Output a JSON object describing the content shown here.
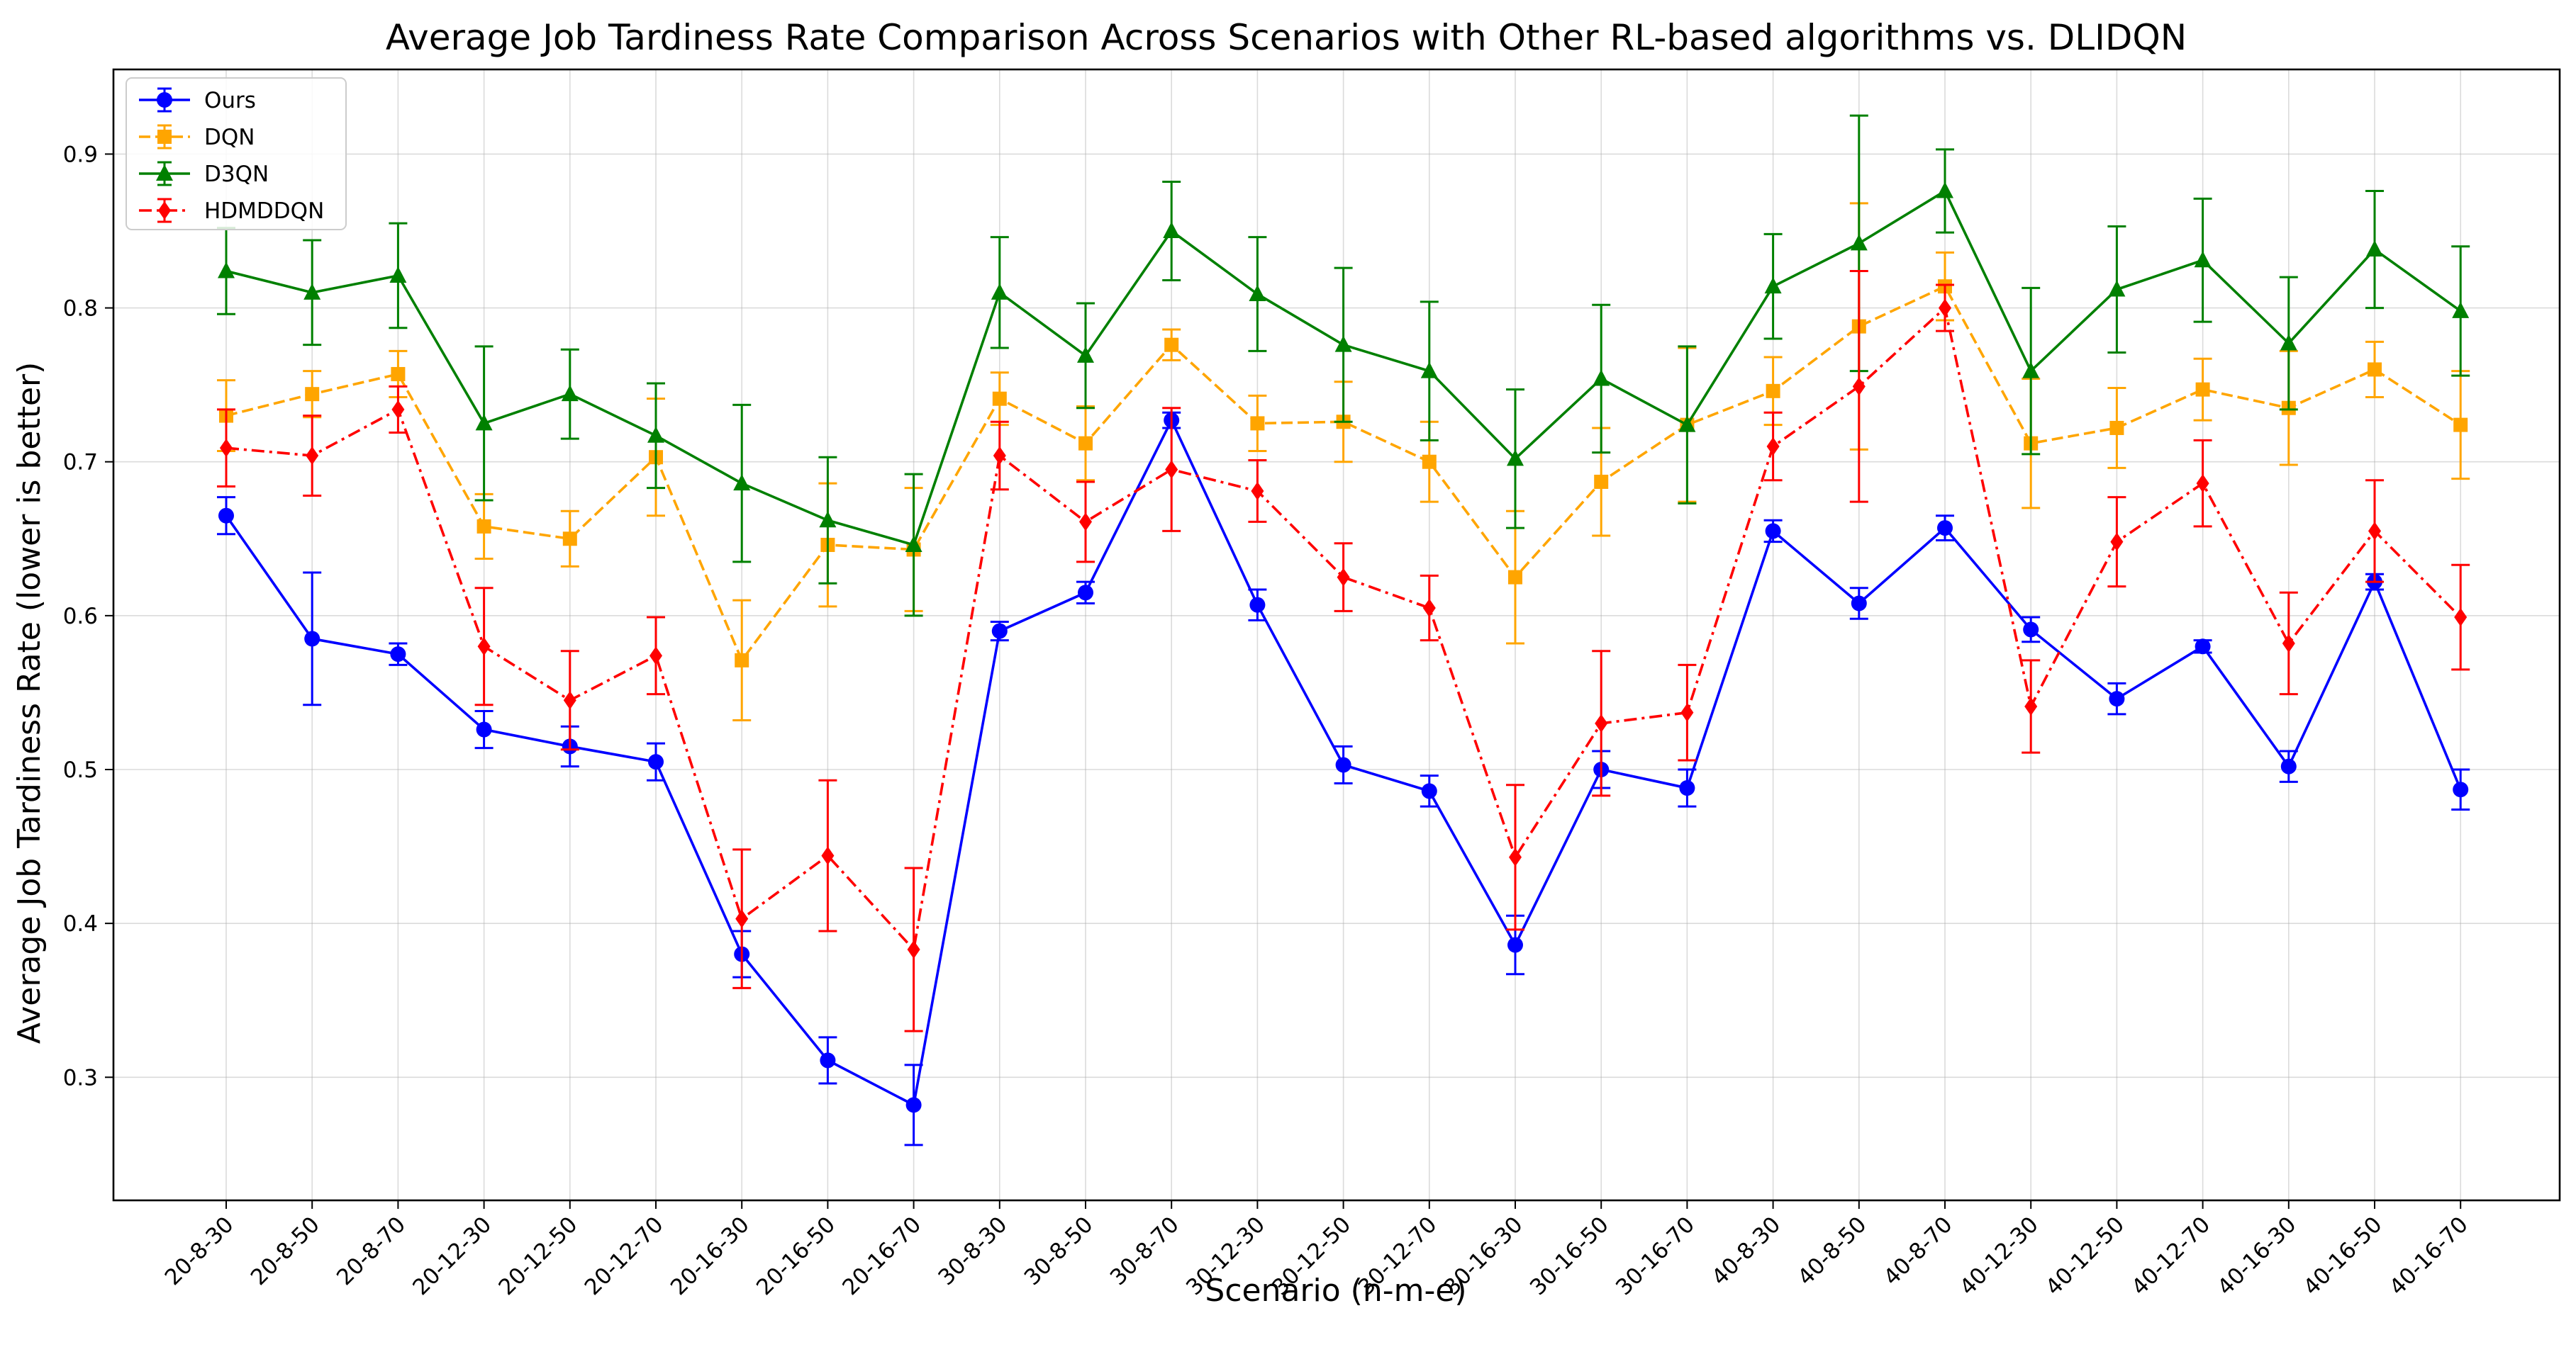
{
  "chart_data": {
    "type": "line",
    "title": "Average Job Tardiness Rate Comparison Across Scenarios with Other RL-based algorithms vs. DLIDQN",
    "xlabel": "Scenario (n-m-e)",
    "ylabel": "Average Job Tardiness Rate (lower is better)",
    "ylim": [
      0.22,
      0.955
    ],
    "yticks": [
      "0.3",
      "0.4",
      "0.5",
      "0.6",
      "0.7",
      "0.8",
      "0.9"
    ],
    "grid": true,
    "legend_position": "top-left",
    "categories": [
      "20-8-30",
      "20-8-50",
      "20-8-70",
      "20-12-30",
      "20-12-50",
      "20-12-70",
      "20-16-30",
      "20-16-50",
      "20-16-70",
      "30-8-30",
      "30-8-50",
      "30-8-70",
      "30-12-30",
      "30-12-50",
      "30-12-70",
      "30-16-30",
      "30-16-50",
      "30-16-70",
      "40-8-30",
      "40-8-50",
      "40-8-70",
      "40-12-30",
      "40-12-50",
      "40-12-70",
      "40-16-30",
      "40-16-50",
      "40-16-70"
    ],
    "series": [
      {
        "name": "Ours",
        "color": "#0000ff",
        "marker": "circle",
        "dash": "solid",
        "values": [
          0.665,
          0.585,
          0.575,
          0.526,
          0.515,
          0.505,
          0.38,
          0.311,
          0.282,
          0.59,
          0.615,
          0.727,
          0.607,
          0.503,
          0.486,
          0.386,
          0.5,
          0.488,
          0.655,
          0.608,
          0.657,
          0.591,
          0.546,
          0.58,
          0.502,
          0.622,
          0.487
        ],
        "errors": [
          0.012,
          0.043,
          0.007,
          0.012,
          0.013,
          0.012,
          0.015,
          0.015,
          0.026,
          0.006,
          0.007,
          0.005,
          0.01,
          0.012,
          0.01,
          0.019,
          0.012,
          0.012,
          0.007,
          0.01,
          0.008,
          0.008,
          0.01,
          0.004,
          0.01,
          0.005,
          0.013
        ]
      },
      {
        "name": "DQN",
        "color": "#ffa500",
        "marker": "square",
        "dash": "dashed",
        "values": [
          0.73,
          0.744,
          0.757,
          0.658,
          0.65,
          0.703,
          0.571,
          0.646,
          0.643,
          0.741,
          0.712,
          0.776,
          0.725,
          0.726,
          0.7,
          0.625,
          0.687,
          0.724,
          0.746,
          0.788,
          0.814,
          0.712,
          0.722,
          0.747,
          0.735,
          0.76,
          0.724
        ],
        "errors": [
          0.023,
          0.015,
          0.015,
          0.021,
          0.018,
          0.038,
          0.039,
          0.04,
          0.04,
          0.017,
          0.024,
          0.01,
          0.018,
          0.026,
          0.026,
          0.043,
          0.035,
          0.05,
          0.022,
          0.08,
          0.022,
          0.042,
          0.026,
          0.02,
          0.037,
          0.018,
          0.035
        ]
      },
      {
        "name": "D3QN",
        "color": "#008000",
        "marker": "triangle",
        "dash": "solid",
        "values": [
          0.824,
          0.81,
          0.821,
          0.725,
          0.744,
          0.717,
          0.686,
          0.662,
          0.646,
          0.81,
          0.769,
          0.85,
          0.809,
          0.776,
          0.759,
          0.702,
          0.754,
          0.724,
          0.814,
          0.842,
          0.876,
          0.759,
          0.812,
          0.831,
          0.777,
          0.838,
          0.798
        ],
        "errors": [
          0.028,
          0.034,
          0.034,
          0.05,
          0.029,
          0.034,
          0.051,
          0.041,
          0.046,
          0.036,
          0.034,
          0.032,
          0.037,
          0.05,
          0.045,
          0.045,
          0.048,
          0.051,
          0.034,
          0.083,
          0.027,
          0.054,
          0.041,
          0.04,
          0.043,
          0.038,
          0.042
        ]
      },
      {
        "name": "HDMDDQN",
        "color": "#ff0000",
        "marker": "diamond",
        "dash": "dashdot",
        "values": [
          0.709,
          0.704,
          0.734,
          0.58,
          0.545,
          0.574,
          0.403,
          0.444,
          0.383,
          0.704,
          0.661,
          0.695,
          0.681,
          0.625,
          0.605,
          0.443,
          0.53,
          0.537,
          0.71,
          0.749,
          0.8,
          0.541,
          0.648,
          0.686,
          0.582,
          0.655,
          0.599
        ],
        "errors": [
          0.025,
          0.026,
          0.015,
          0.038,
          0.032,
          0.025,
          0.045,
          0.049,
          0.053,
          0.022,
          0.026,
          0.04,
          0.02,
          0.022,
          0.021,
          0.047,
          0.047,
          0.031,
          0.022,
          0.075,
          0.015,
          0.03,
          0.029,
          0.028,
          0.033,
          0.033,
          0.034
        ]
      }
    ]
  }
}
